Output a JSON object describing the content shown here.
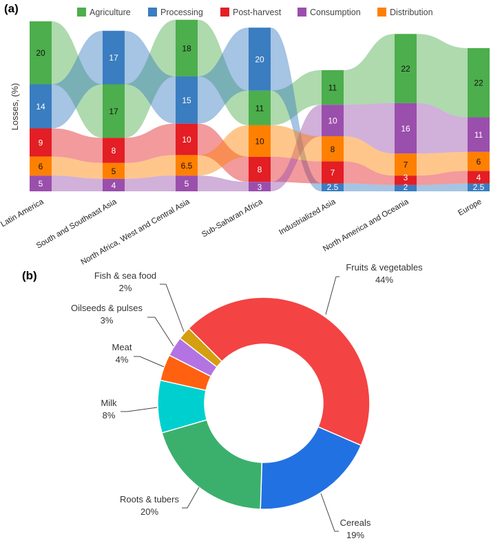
{
  "chart_data": [
    {
      "panel_label": "(a)",
      "type": "sankey-stacked-bar",
      "ylabel": "Losses, (%)",
      "categories": [
        "Latin America",
        "South and Southeast Asia",
        "North Africa, West and Central Asia",
        "Sub-Saharan Africa",
        "Industrialized Asia",
        "North America and Oceania",
        "Europe"
      ],
      "series": [
        {
          "name": "Agriculture",
          "color": "#4cae4c",
          "values": [
            20,
            17,
            18,
            11,
            11,
            22,
            22
          ]
        },
        {
          "name": "Processing",
          "color": "#3a7dc0",
          "values": [
            14,
            17,
            15,
            20,
            2.5,
            2,
            2.5
          ]
        },
        {
          "name": "Post-harvest",
          "color": "#e31e24",
          "values": [
            9,
            8,
            10,
            8,
            7,
            3,
            4
          ]
        },
        {
          "name": "Consumption",
          "color": "#9a4fac",
          "values": [
            5,
            4,
            5,
            3,
            10,
            16,
            11
          ]
        },
        {
          "name": "Distribution",
          "color": "#ff8000",
          "values": [
            6,
            5,
            6.5,
            10,
            8,
            7,
            6
          ]
        }
      ],
      "value_labels": [
        [
          "20",
          "17",
          "18",
          "11",
          "11",
          "22",
          "22"
        ],
        [
          "14",
          "17",
          "15",
          "20",
          "2.5",
          "2",
          "2.5"
        ],
        [
          "9",
          "8",
          "10",
          "8",
          "7",
          "3",
          "4"
        ],
        [
          "5",
          "4",
          "5",
          "3",
          "10",
          "16",
          "11"
        ],
        [
          "6",
          "5",
          "6.5",
          "10",
          "8",
          "7",
          "6"
        ]
      ],
      "stacking": "descending by value within each region, largest on top",
      "legend_position": "top"
    },
    {
      "panel_label": "(b)",
      "type": "pie",
      "donut": true,
      "start": "top-left, clockwise",
      "slices": [
        {
          "label": "Fruits & vegetables",
          "value": 44,
          "pct_label": "44%",
          "color": "#f44343"
        },
        {
          "label": "Cereals",
          "value": 19,
          "pct_label": "19%",
          "color": "#2271e2"
        },
        {
          "label": "Roots & tubers",
          "value": 20,
          "pct_label": "20%",
          "color": "#3bb06d"
        },
        {
          "label": "Milk",
          "value": 8,
          "pct_label": "8%",
          "color": "#00cfcf"
        },
        {
          "label": "Meat",
          "value": 4,
          "pct_label": "4%",
          "color": "#ff6110"
        },
        {
          "label": "Oilseeds & pulses",
          "value": 3,
          "pct_label": "3%",
          "color": "#b373e3"
        },
        {
          "label": "Fish & sea food",
          "value": 2,
          "pct_label": "2%",
          "color": "#d49f10"
        }
      ]
    }
  ]
}
